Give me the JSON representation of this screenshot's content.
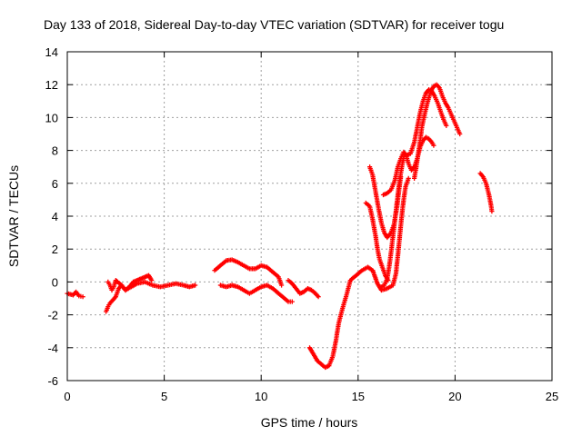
{
  "chart_data": {
    "type": "scatter",
    "title": "Day 133 of 2018, Sidereal Day-to-day VTEC variation (SDTVAR) for receiver togu",
    "xlabel": "GPS time / hours",
    "ylabel": "SDTVAR / TECUs",
    "xlim": [
      0,
      25
    ],
    "ylim": [
      -6,
      14
    ],
    "xticks": [
      0,
      5,
      10,
      15,
      20,
      25
    ],
    "yticks": [
      -6,
      -4,
      -2,
      0,
      2,
      4,
      6,
      8,
      10,
      12,
      14
    ],
    "grid": true,
    "marker": "plus",
    "color": "#ff0000",
    "series": [
      {
        "segments": [
          [
            [
              0.0,
              -0.7
            ],
            [
              0.15,
              -0.75
            ],
            [
              0.3,
              -0.8
            ],
            [
              0.45,
              -0.6
            ],
            [
              0.6,
              -0.85
            ],
            [
              0.8,
              -0.9
            ]
          ],
          [
            [
              2.0,
              -1.8
            ],
            [
              2.1,
              -1.5
            ],
            [
              2.2,
              -1.3
            ],
            [
              2.35,
              -1.1
            ],
            [
              2.5,
              -0.9
            ],
            [
              2.65,
              -0.4
            ],
            [
              2.8,
              -0.2
            ],
            [
              3.0,
              -0.5
            ],
            [
              3.2,
              -0.3
            ],
            [
              3.4,
              0.0
            ],
            [
              3.6,
              0.1
            ],
            [
              3.8,
              0.2
            ],
            [
              4.0,
              0.3
            ],
            [
              4.2,
              0.4
            ],
            [
              4.35,
              0.1
            ]
          ],
          [
            [
              2.1,
              0.0
            ],
            [
              2.2,
              -0.2
            ],
            [
              2.3,
              -0.5
            ],
            [
              2.4,
              -0.3
            ],
            [
              2.5,
              0.1
            ],
            [
              2.6,
              0.0
            ],
            [
              2.8,
              -0.2
            ],
            [
              3.0,
              -0.5
            ],
            [
              3.3,
              -0.3
            ],
            [
              3.6,
              -0.1
            ],
            [
              4.0,
              0.0
            ],
            [
              4.4,
              -0.2
            ],
            [
              4.8,
              -0.3
            ],
            [
              5.2,
              -0.2
            ],
            [
              5.6,
              -0.1
            ],
            [
              6.0,
              -0.2
            ],
            [
              6.3,
              -0.3
            ],
            [
              6.6,
              -0.2
            ]
          ],
          [
            [
              7.6,
              0.7
            ],
            [
              7.8,
              0.9
            ],
            [
              8.0,
              1.1
            ],
            [
              8.2,
              1.3
            ],
            [
              8.5,
              1.35
            ],
            [
              8.8,
              1.2
            ],
            [
              9.1,
              1.0
            ],
            [
              9.4,
              0.8
            ],
            [
              9.7,
              0.8
            ],
            [
              10.0,
              1.0
            ],
            [
              10.3,
              0.9
            ],
            [
              10.6,
              0.6
            ],
            [
              10.9,
              0.3
            ],
            [
              11.05,
              -0.2
            ]
          ],
          [
            [
              7.9,
              -0.2
            ],
            [
              8.2,
              -0.3
            ],
            [
              8.5,
              -0.2
            ],
            [
              8.8,
              -0.3
            ],
            [
              9.1,
              -0.5
            ],
            [
              9.4,
              -0.7
            ],
            [
              9.7,
              -0.5
            ],
            [
              10.0,
              -0.3
            ],
            [
              10.3,
              -0.2
            ],
            [
              10.6,
              -0.4
            ],
            [
              10.9,
              -0.7
            ],
            [
              11.2,
              -1.0
            ],
            [
              11.4,
              -1.2
            ],
            [
              11.6,
              -1.2
            ]
          ],
          [
            [
              11.4,
              0.1
            ],
            [
              11.6,
              -0.1
            ],
            [
              11.8,
              -0.4
            ],
            [
              12.0,
              -0.7
            ],
            [
              12.2,
              -0.6
            ],
            [
              12.4,
              -0.4
            ],
            [
              12.6,
              -0.5
            ],
            [
              12.8,
              -0.7
            ],
            [
              12.95,
              -0.9
            ]
          ],
          [
            [
              12.5,
              -4.0
            ],
            [
              12.7,
              -4.4
            ],
            [
              12.9,
              -4.8
            ],
            [
              13.1,
              -5.0
            ],
            [
              13.3,
              -5.2
            ],
            [
              13.5,
              -5.1
            ],
            [
              13.7,
              -4.5
            ],
            [
              13.85,
              -3.6
            ],
            [
              14.0,
              -2.5
            ],
            [
              14.2,
              -1.6
            ],
            [
              14.4,
              -0.8
            ],
            [
              14.6,
              0.1
            ],
            [
              14.9,
              0.4
            ],
            [
              15.2,
              0.7
            ],
            [
              15.5,
              0.9
            ],
            [
              15.75,
              0.7
            ],
            [
              16.0,
              -0.1
            ],
            [
              16.2,
              -0.5
            ],
            [
              16.5,
              -0.4
            ],
            [
              16.8,
              -0.2
            ],
            [
              16.95,
              0.5
            ],
            [
              17.05,
              1.6
            ],
            [
              17.15,
              2.8
            ],
            [
              17.25,
              4.0
            ],
            [
              17.35,
              5.0
            ],
            [
              17.45,
              5.8
            ],
            [
              17.6,
              6.3
            ]
          ],
          [
            [
              15.4,
              4.8
            ],
            [
              15.6,
              4.6
            ],
            [
              15.75,
              3.8
            ],
            [
              15.9,
              2.8
            ],
            [
              16.0,
              2.0
            ],
            [
              16.1,
              1.4
            ],
            [
              16.25,
              0.9
            ],
            [
              16.4,
              0.4
            ],
            [
              16.55,
              0.1
            ]
          ],
          [
            [
              15.6,
              7.0
            ],
            [
              15.75,
              6.5
            ],
            [
              15.9,
              5.5
            ],
            [
              16.05,
              4.5
            ],
            [
              16.2,
              3.6
            ],
            [
              16.35,
              3.0
            ],
            [
              16.5,
              2.7
            ],
            [
              16.7,
              3.0
            ],
            [
              16.85,
              3.5
            ],
            [
              17.0,
              4.5
            ],
            [
              17.1,
              5.5
            ],
            [
              17.2,
              6.4
            ]
          ],
          [
            [
              16.2,
              -0.3
            ],
            [
              16.35,
              -0.2
            ],
            [
              16.5,
              0.2
            ],
            [
              16.6,
              0.9
            ],
            [
              16.7,
              1.8
            ],
            [
              16.8,
              2.8
            ],
            [
              16.9,
              3.8
            ],
            [
              17.0,
              4.8
            ],
            [
              17.1,
              5.8
            ],
            [
              17.2,
              6.6
            ],
            [
              17.3,
              7.3
            ],
            [
              17.4,
              7.8
            ],
            [
              17.5,
              7.6
            ],
            [
              17.6,
              7.2
            ],
            [
              17.75,
              6.8
            ],
            [
              17.9,
              7.0
            ],
            [
              18.05,
              7.5
            ],
            [
              18.2,
              8.2
            ],
            [
              18.35,
              8.6
            ],
            [
              18.5,
              8.8
            ],
            [
              18.65,
              8.7
            ],
            [
              18.8,
              8.5
            ],
            [
              18.9,
              8.3
            ]
          ],
          [
            [
              16.3,
              5.3
            ],
            [
              16.5,
              5.4
            ],
            [
              16.7,
              5.6
            ],
            [
              16.9,
              6.2
            ],
            [
              17.05,
              7.0
            ],
            [
              17.2,
              7.5
            ],
            [
              17.35,
              7.9
            ],
            [
              17.5,
              7.7
            ],
            [
              17.7,
              7.8
            ],
            [
              17.9,
              8.5
            ],
            [
              18.05,
              9.4
            ],
            [
              18.2,
              10.3
            ],
            [
              18.35,
              11.0
            ],
            [
              18.5,
              11.5
            ],
            [
              18.65,
              11.7
            ],
            [
              18.8,
              11.6
            ],
            [
              18.95,
              11.3
            ],
            [
              19.1,
              10.9
            ],
            [
              19.25,
              10.4
            ],
            [
              19.4,
              9.9
            ],
            [
              19.55,
              9.5
            ]
          ],
          [
            [
              17.9,
              6.3
            ],
            [
              18.0,
              7.0
            ],
            [
              18.1,
              7.8
            ],
            [
              18.2,
              8.6
            ],
            [
              18.3,
              9.5
            ],
            [
              18.45,
              10.3
            ],
            [
              18.6,
              11.0
            ],
            [
              18.75,
              11.6
            ],
            [
              18.9,
              11.9
            ],
            [
              19.05,
              12.0
            ],
            [
              19.2,
              11.8
            ],
            [
              19.35,
              11.3
            ],
            [
              19.5,
              10.9
            ],
            [
              19.65,
              10.6
            ],
            [
              19.8,
              10.2
            ],
            [
              19.95,
              9.8
            ],
            [
              20.1,
              9.4
            ],
            [
              20.25,
              9.0
            ]
          ],
          [
            [
              21.3,
              6.6
            ],
            [
              21.45,
              6.4
            ],
            [
              21.6,
              6.0
            ],
            [
              21.75,
              5.3
            ],
            [
              21.85,
              4.7
            ],
            [
              21.9,
              4.3
            ]
          ]
        ]
      }
    ]
  }
}
